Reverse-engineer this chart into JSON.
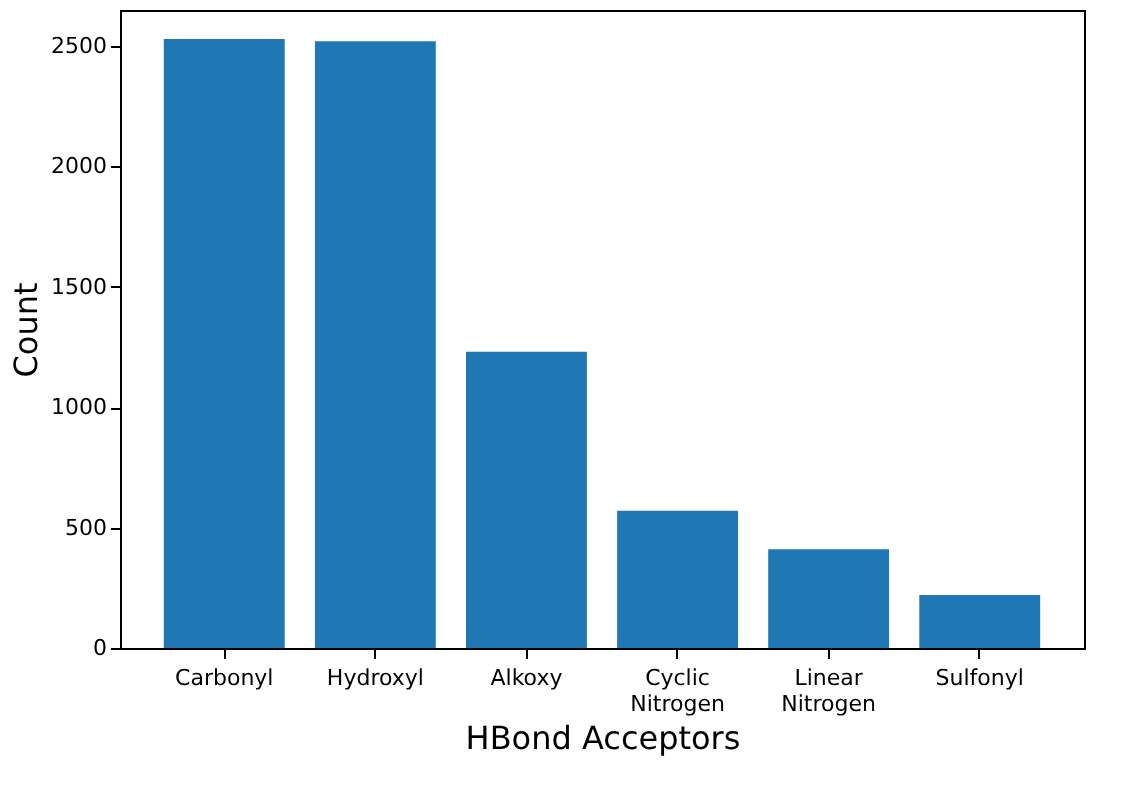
{
  "chart_data": {
    "type": "bar",
    "xlabel": "HBond Acceptors",
    "ylabel": "Count",
    "categories": [
      "Carbonyl",
      "Hydroxyl",
      "Alkoxy",
      "Cyclic Nitrogen",
      "Linear Nitrogen",
      "Sulfonyl"
    ],
    "values": [
      2530,
      2520,
      1230,
      570,
      410,
      220
    ],
    "color": "#1f77b4",
    "ylim": [
      0,
      2650
    ],
    "yticks": [
      0,
      500,
      1000,
      1500,
      2000,
      2500
    ],
    "grid": false
  }
}
